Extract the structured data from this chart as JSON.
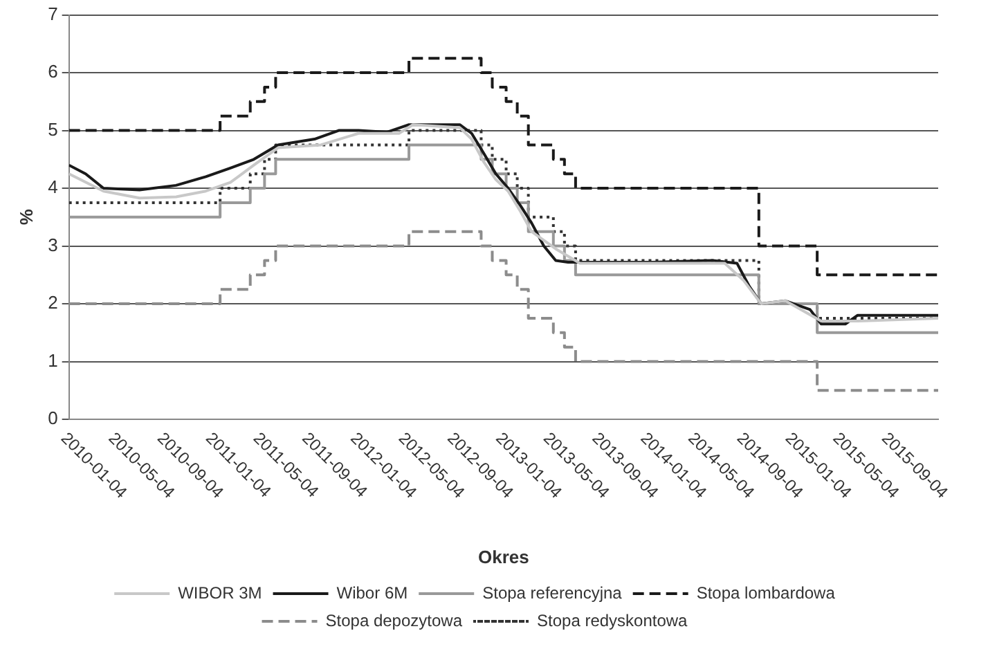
{
  "chart_data": {
    "type": "line",
    "xlabel": "Okres",
    "ylabel": "%",
    "xlim": [
      "2010-01-04",
      "2016-01-04"
    ],
    "xticks": [
      "2010-01-04",
      "2010-05-04",
      "2010-09-04",
      "2011-01-04",
      "2011-05-04",
      "2011-09-04",
      "2012-01-04",
      "2012-05-04",
      "2012-09-04",
      "2013-01-04",
      "2013-05-04",
      "2013-09-04",
      "2014-01-04",
      "2014-05-04",
      "2014-09-04",
      "2015-01-04",
      "2015-05-04",
      "2015-09-04"
    ],
    "ylim": [
      0,
      7
    ],
    "yticks": [
      0,
      1,
      2,
      3,
      4,
      5,
      6,
      7
    ],
    "grid": "y",
    "legend": "bottom",
    "marker": "none",
    "series": [
      {
        "name": "WIBOR 3M",
        "type": "line",
        "color": "#c8c8c8",
        "line_style": "solid",
        "x": [
          "2010-01-04",
          "2010-04-01",
          "2010-07-01",
          "2010-10-01",
          "2010-12-15",
          "2011-02-15",
          "2011-04-15",
          "2011-06-15",
          "2011-10-01",
          "2012-01-04",
          "2012-04-15",
          "2012-05-20",
          "2012-09-15",
          "2012-10-15",
          "2012-11-15",
          "2012-12-15",
          "2013-01-15",
          "2013-02-15",
          "2013-03-15",
          "2013-05-15",
          "2013-07-15",
          "2014-01-15",
          "2014-07-15",
          "2014-09-01",
          "2014-10-15",
          "2014-12-15",
          "2015-03-15",
          "2015-06-15",
          "2016-01-04"
        ],
        "values": [
          4.25,
          3.95,
          3.83,
          3.85,
          3.95,
          4.1,
          4.4,
          4.7,
          4.75,
          4.95,
          4.95,
          5.1,
          5.05,
          4.85,
          4.45,
          4.15,
          3.95,
          3.6,
          3.25,
          2.95,
          2.7,
          2.7,
          2.7,
          2.4,
          2.0,
          2.05,
          1.7,
          1.7,
          1.75
        ]
      },
      {
        "name": "Wibor 6M",
        "type": "line",
        "color": "#1a1a1a",
        "line_style": "solid",
        "x": [
          "2010-01-04",
          "2010-02-15",
          "2010-04-01",
          "2010-07-01",
          "2010-10-01",
          "2010-12-15",
          "2011-02-15",
          "2011-04-15",
          "2011-06-15",
          "2011-09-15",
          "2011-11-15",
          "2012-01-04",
          "2012-03-15",
          "2012-05-10",
          "2012-09-15",
          "2012-10-15",
          "2012-11-15",
          "2012-12-15",
          "2013-01-15",
          "2013-02-15",
          "2013-03-15",
          "2013-04-15",
          "2013-05-15",
          "2013-06-15",
          "2014-01-15",
          "2014-06-15",
          "2014-08-15",
          "2014-09-15",
          "2014-10-15",
          "2014-12-15",
          "2015-02-15",
          "2015-03-15",
          "2015-05-15",
          "2015-06-15",
          "2016-01-04"
        ],
        "values": [
          4.4,
          4.25,
          4.0,
          3.97,
          4.05,
          4.2,
          4.35,
          4.5,
          4.75,
          4.85,
          5.0,
          5.0,
          4.97,
          5.1,
          5.1,
          4.95,
          4.6,
          4.25,
          4.0,
          3.7,
          3.4,
          3.0,
          2.75,
          2.72,
          2.72,
          2.75,
          2.7,
          2.3,
          2.0,
          2.05,
          1.9,
          1.65,
          1.65,
          1.8,
          1.8
        ]
      },
      {
        "name": "Stopa referencyjna",
        "type": "step",
        "color": "#999999",
        "line_style": "solid",
        "x": [
          "2010-01-04",
          "2011-01-20",
          "2011-04-06",
          "2011-05-12",
          "2011-06-09",
          "2012-05-10",
          "2012-11-08",
          "2012-12-06",
          "2013-01-10",
          "2013-02-07",
          "2013-03-07",
          "2013-05-09",
          "2013-06-06",
          "2013-07-04",
          "2014-10-09",
          "2015-03-05",
          "2016-01-04"
        ],
        "values": [
          3.5,
          3.75,
          4,
          4.25,
          4.5,
          4.75,
          4.5,
          4.25,
          4,
          3.75,
          3.25,
          3,
          2.75,
          2.5,
          2,
          1.5,
          1.5
        ]
      },
      {
        "name": "Stopa lombardowa",
        "type": "step",
        "color": "#1a1a1a",
        "line_style": "dashed",
        "x": [
          "2010-01-04",
          "2011-01-20",
          "2011-04-06",
          "2011-05-12",
          "2011-06-09",
          "2012-05-10",
          "2012-11-08",
          "2012-12-06",
          "2013-01-10",
          "2013-02-07",
          "2013-03-07",
          "2013-05-09",
          "2013-06-06",
          "2013-07-04",
          "2014-10-09",
          "2015-03-05",
          "2016-01-04"
        ],
        "values": [
          5,
          5.25,
          5.5,
          5.75,
          6,
          6.25,
          6,
          5.75,
          5.5,
          5.25,
          4.75,
          4.5,
          4.25,
          4,
          3,
          2.5,
          2.5
        ]
      },
      {
        "name": "Stopa depozytowa",
        "type": "step",
        "color": "#8c8c8c",
        "line_style": "dashed",
        "x": [
          "2010-01-04",
          "2011-01-20",
          "2011-04-06",
          "2011-05-12",
          "2011-06-09",
          "2012-05-10",
          "2012-11-08",
          "2012-12-06",
          "2013-01-10",
          "2013-02-07",
          "2013-03-07",
          "2013-05-09",
          "2013-06-06",
          "2013-07-04",
          "2014-10-09",
          "2015-03-05",
          "2016-01-04"
        ],
        "values": [
          2,
          2.25,
          2.5,
          2.75,
          3,
          3.25,
          3,
          2.75,
          2.5,
          2.25,
          1.75,
          1.5,
          1.25,
          1,
          1,
          0.5,
          0.5
        ]
      },
      {
        "name": "Stopa redyskontowa",
        "type": "step",
        "color": "#333333",
        "line_style": "dotted",
        "x": [
          "2010-01-04",
          "2011-01-20",
          "2011-04-06",
          "2011-05-12",
          "2011-06-09",
          "2012-05-10",
          "2012-11-08",
          "2012-12-06",
          "2013-01-10",
          "2013-02-07",
          "2013-03-07",
          "2013-05-09",
          "2013-06-06",
          "2013-07-04",
          "2014-10-09",
          "2015-03-05",
          "2016-01-04"
        ],
        "values": [
          3.75,
          4,
          4.25,
          4.5,
          4.75,
          5,
          4.75,
          4.5,
          4.25,
          4,
          3.5,
          3.25,
          3,
          2.75,
          2,
          1.75,
          1.75
        ]
      }
    ]
  }
}
